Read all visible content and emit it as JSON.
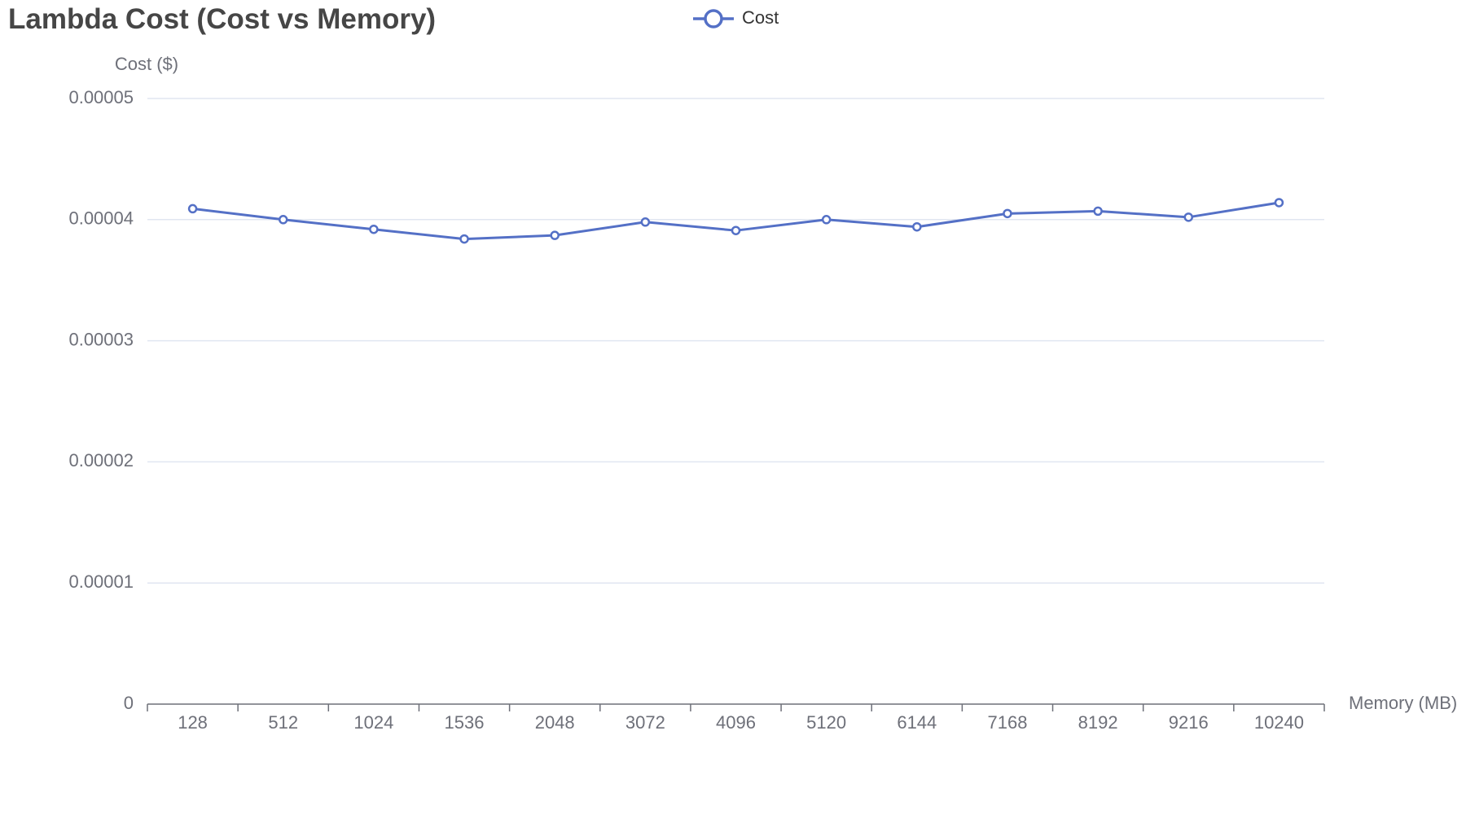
{
  "title": "Lambda Cost (Cost vs Memory)",
  "chart_data": {
    "type": "line",
    "title": "Lambda Cost (Cost vs Memory)",
    "xlabel": "Memory (MB)",
    "ylabel": "Cost ($)",
    "categories": [
      "128",
      "512",
      "1024",
      "1536",
      "2048",
      "3072",
      "4096",
      "5120",
      "6144",
      "7168",
      "8192",
      "9216",
      "10240"
    ],
    "y_ticks": [
      "0",
      "0.00001",
      "0.00002",
      "0.00003",
      "0.00004",
      "0.00005"
    ],
    "ylim": [
      0,
      5e-05
    ],
    "grid": true,
    "legend_position": "top-center",
    "series": [
      {
        "name": "Cost",
        "color": "#5470c6",
        "values": [
          4.09e-05,
          4e-05,
          3.92e-05,
          3.84e-05,
          3.87e-05,
          3.98e-05,
          3.91e-05,
          4e-05,
          3.94e-05,
          4.05e-05,
          4.07e-05,
          4.02e-05,
          4.14e-05
        ]
      }
    ]
  }
}
